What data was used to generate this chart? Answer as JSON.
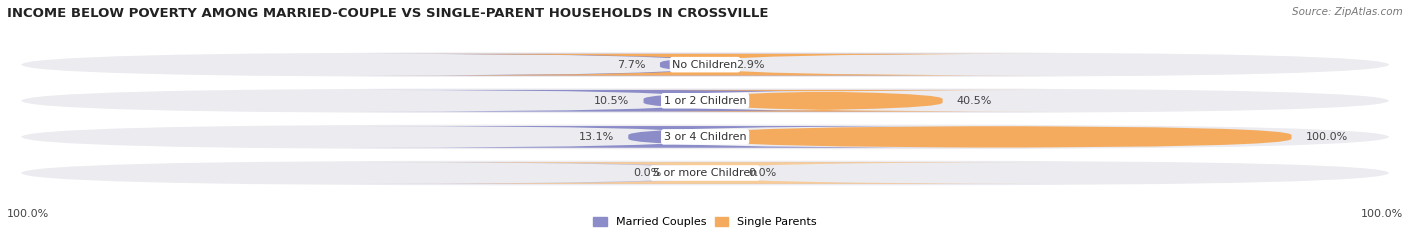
{
  "title": "INCOME BELOW POVERTY AMONG MARRIED-COUPLE VS SINGLE-PARENT HOUSEHOLDS IN CROSSVILLE",
  "source": "Source: ZipAtlas.com",
  "categories": [
    "No Children",
    "1 or 2 Children",
    "3 or 4 Children",
    "5 or more Children"
  ],
  "married_values": [
    7.7,
    10.5,
    13.1,
    0.0
  ],
  "single_values": [
    2.9,
    40.5,
    100.0,
    0.0
  ],
  "married_color": "#8b8cc8",
  "single_color": "#f5ab5e",
  "married_color_light": "#c0c0dc",
  "single_color_light": "#f8cc99",
  "bar_bg_color": "#ebebf0",
  "bar_gap_color": "#ffffff",
  "max_value": 100.0,
  "title_fontsize": 9.5,
  "label_fontsize": 8.0,
  "source_fontsize": 7.5,
  "legend_fontsize": 8.0,
  "background_color": "#ffffff"
}
